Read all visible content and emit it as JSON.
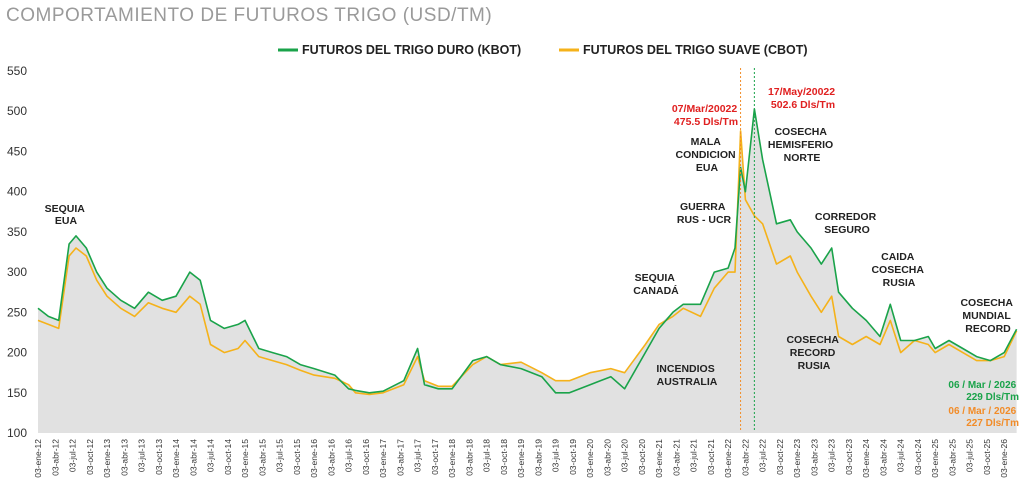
{
  "chart_data": {
    "type": "line",
    "title": "COMPORTAMIENTO  DE FUTUROS TRIGO (USD/TM)",
    "legend_position": "top-center",
    "grid": false,
    "ylim": [
      100,
      550
    ],
    "y_ticks": [
      "550",
      "500",
      "450",
      "400",
      "350",
      "300",
      "250",
      "200",
      "150",
      "100"
    ],
    "x_ticks": [
      "03-ene-12",
      "03-abr-12",
      "03-jul-12",
      "03-oct-12",
      "03-ene-13",
      "03-abr-13",
      "03-jul-13",
      "03-oct-13",
      "03-ene-14",
      "03-abr-14",
      "03-jul-14",
      "03-oct-14",
      "03-ene-15",
      "03-abr-15",
      "03-jul-15",
      "03-oct-15",
      "03-ene-16",
      "03-abr-16",
      "03-jul-16",
      "03-oct-16",
      "03-ene-17",
      "03-abr-17",
      "03-jul-17",
      "03-oct-17",
      "03-ene-18",
      "03-abr-18",
      "03-jul-18",
      "03-oct-18",
      "03-ene-19",
      "03-abr-19",
      "03-jul-19",
      "03-oct-19",
      "03-ene-20",
      "03-abr-20",
      "03-jul-20",
      "03-oct-20",
      "03-ene-21",
      "03-abr-21",
      "03-jul-21",
      "03-oct-21",
      "03-ene-22",
      "03-abr-22",
      "03-jul-22",
      "03-oct-22",
      "03-ene-23",
      "03-abr-23",
      "03-jul-23",
      "03-oct-23",
      "03-ene-24",
      "03-abr-24",
      "03-jul-24",
      "03-oct-24",
      "03-ene-25",
      "03-abr-25",
      "03-jul-25",
      "03-oct-25",
      "03-ene-26"
    ],
    "colors": {
      "kbot": "#1aa34a",
      "cbot": "#f5b21a",
      "area": "#dcdcdc",
      "red": "#e02020",
      "orange": "#f28c28"
    },
    "series": [
      {
        "name": "FUTUROS DEL TRIGO DURO (KBOT)",
        "x": [
          2012.0,
          2012.15,
          2012.3,
          2012.45,
          2012.55,
          2012.7,
          2012.85,
          2013.0,
          2013.2,
          2013.4,
          2013.6,
          2013.8,
          2014.0,
          2014.2,
          2014.35,
          2014.5,
          2014.7,
          2014.9,
          2015.0,
          2015.2,
          2015.4,
          2015.6,
          2015.8,
          2016.0,
          2016.3,
          2016.5,
          2016.6,
          2016.8,
          2017.0,
          2017.3,
          2017.5,
          2017.6,
          2017.8,
          2018.0,
          2018.3,
          2018.5,
          2018.7,
          2019.0,
          2019.3,
          2019.5,
          2019.7,
          2020.0,
          2020.3,
          2020.5,
          2020.8,
          2021.0,
          2021.2,
          2021.35,
          2021.6,
          2021.8,
          2022.0,
          2022.1,
          2022.18,
          2022.25,
          2022.38,
          2022.5,
          2022.7,
          2022.9,
          2023.0,
          2023.2,
          2023.35,
          2023.5,
          2023.6,
          2023.8,
          2024.0,
          2024.2,
          2024.35,
          2024.5,
          2024.7,
          2024.9,
          2025.0,
          2025.2,
          2025.4,
          2025.6,
          2025.8,
          2026.0,
          2026.18
        ],
        "values": [
          255,
          245,
          240,
          335,
          345,
          330,
          300,
          280,
          265,
          255,
          275,
          265,
          270,
          300,
          290,
          240,
          230,
          235,
          240,
          205,
          200,
          195,
          185,
          180,
          172,
          155,
          153,
          150,
          152,
          165,
          205,
          160,
          155,
          155,
          190,
          195,
          185,
          180,
          170,
          150,
          150,
          160,
          170,
          155,
          200,
          230,
          250,
          260,
          260,
          300,
          305,
          330,
          430,
          400,
          502.6,
          440,
          360,
          365,
          350,
          330,
          310,
          330,
          275,
          255,
          240,
          220,
          260,
          215,
          215,
          220,
          205,
          215,
          205,
          195,
          190,
          200,
          229
        ]
      },
      {
        "name": "FUTUROS DEL TRIGO SUAVE (CBOT)",
        "x": [
          2012.0,
          2012.15,
          2012.3,
          2012.45,
          2012.55,
          2012.7,
          2012.85,
          2013.0,
          2013.2,
          2013.4,
          2013.6,
          2013.8,
          2014.0,
          2014.2,
          2014.35,
          2014.5,
          2014.7,
          2014.9,
          2015.0,
          2015.2,
          2015.4,
          2015.6,
          2015.8,
          2016.0,
          2016.3,
          2016.5,
          2016.6,
          2016.8,
          2017.0,
          2017.3,
          2017.5,
          2017.6,
          2017.8,
          2018.0,
          2018.3,
          2018.5,
          2018.7,
          2019.0,
          2019.3,
          2019.5,
          2019.7,
          2020.0,
          2020.3,
          2020.5,
          2020.8,
          2021.0,
          2021.2,
          2021.35,
          2021.6,
          2021.8,
          2022.0,
          2022.1,
          2022.18,
          2022.25,
          2022.38,
          2022.5,
          2022.7,
          2022.9,
          2023.0,
          2023.2,
          2023.35,
          2023.5,
          2023.6,
          2023.8,
          2024.0,
          2024.2,
          2024.35,
          2024.5,
          2024.7,
          2024.9,
          2025.0,
          2025.2,
          2025.4,
          2025.6,
          2025.8,
          2026.0,
          2026.18
        ],
        "values": [
          240,
          235,
          230,
          320,
          330,
          320,
          290,
          270,
          255,
          245,
          262,
          255,
          250,
          270,
          260,
          210,
          200,
          205,
          215,
          195,
          190,
          185,
          178,
          172,
          168,
          160,
          150,
          148,
          150,
          160,
          195,
          165,
          158,
          158,
          185,
          195,
          185,
          188,
          175,
          165,
          165,
          175,
          180,
          175,
          210,
          235,
          245,
          255,
          245,
          280,
          300,
          300,
          475.5,
          390,
          370,
          360,
          310,
          320,
          300,
          270,
          250,
          270,
          220,
          210,
          220,
          210,
          240,
          200,
          215,
          210,
          200,
          210,
          200,
          190,
          190,
          195,
          227
        ]
      }
    ],
    "annotations": {
      "sequia_eua": [
        "SEQUIA",
        "EUA"
      ],
      "mala_condicion": [
        "MALA",
        "CONDICION",
        "EUA"
      ],
      "guerra": [
        "GUERRA",
        "RUS - UCR"
      ],
      "sequia_canada": [
        "SEQUIA",
        "CANADÁ"
      ],
      "incendios": [
        "INCENDIOS",
        "AUSTRALIA"
      ],
      "cosecha_hemisferio": [
        "COSECHA",
        "HEMISFERIO",
        "NORTE"
      ],
      "corredor": [
        "CORREDOR",
        "SEGURO"
      ],
      "caida": [
        "CAIDA",
        "COSECHA",
        "RUSIA"
      ],
      "cosecha_record": [
        "COSECHA",
        "RECORD",
        "RUSIA"
      ],
      "cosecha_mundial": [
        "COSECHA",
        "MUNDIAL",
        "RECORD"
      ],
      "peak_cbot": [
        "07/Mar/20022",
        "475.5 Dls/Tm"
      ],
      "peak_kbot": [
        "17/May/20022",
        "502.6 Dls/Tm"
      ],
      "last_kbot": [
        "06 / Mar / 2026",
        "229 Dls/Tm"
      ],
      "last_cbot": [
        "06 / Mar / 2026",
        "227 Dls/Tm"
      ]
    }
  }
}
